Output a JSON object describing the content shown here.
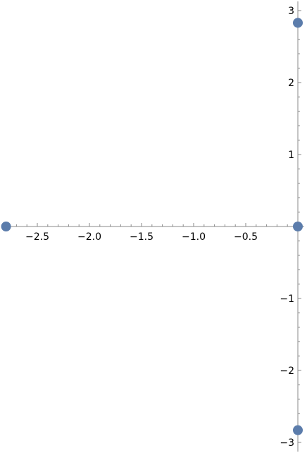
{
  "chart_data": {
    "type": "scatter",
    "title": "",
    "xlabel": "",
    "ylabel": "",
    "xlim": [
      -2.8,
      0.06
    ],
    "ylim": [
      -3.1,
      3.1
    ],
    "grid": false,
    "x_ticks": [
      {
        "value": -2.5,
        "label": "−2.5"
      },
      {
        "value": -2.0,
        "label": "−2.0"
      },
      {
        "value": -1.5,
        "label": "−1.5"
      },
      {
        "value": -1.0,
        "label": "−1.0"
      },
      {
        "value": -0.5,
        "label": "−0.5"
      }
    ],
    "y_ticks": [
      {
        "value": 3,
        "label": "3"
      },
      {
        "value": 2,
        "label": "2"
      },
      {
        "value": 1,
        "label": "1"
      },
      {
        "value": -1,
        "label": "−1"
      },
      {
        "value": -2,
        "label": "−2"
      },
      {
        "value": -3,
        "label": "−3"
      }
    ],
    "series": [
      {
        "color": "#5b7cab",
        "points": [
          {
            "x": -2.8,
            "y": 0
          },
          {
            "x": 0,
            "y": 0
          },
          {
            "x": 0,
            "y": 2.83
          },
          {
            "x": 0,
            "y": -2.83
          }
        ]
      }
    ]
  }
}
